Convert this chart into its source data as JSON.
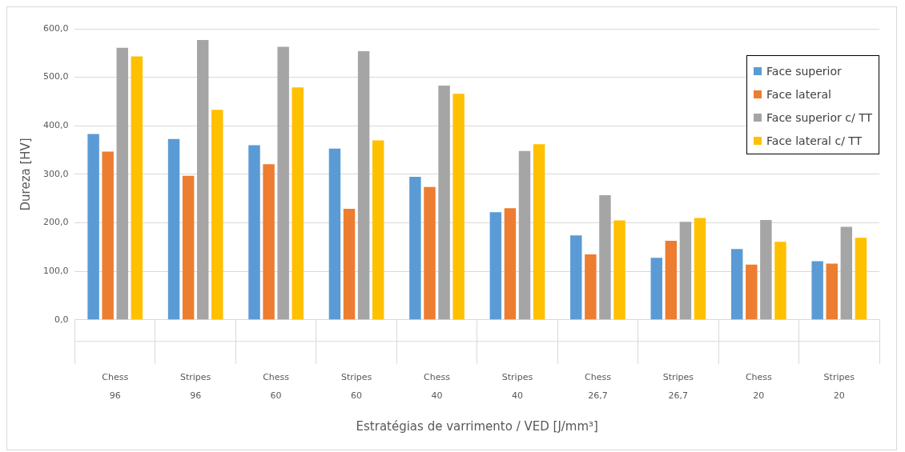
{
  "chart_data": {
    "type": "bar",
    "xlabel": "Estratégias de varrimento / VED [J/mm³]",
    "ylabel": "Dureza [HV]",
    "categories": [
      "Chess\n96",
      "Stripes\n96",
      "Chess\n60",
      "Stripes\n60",
      "Chess\n40",
      "Stripes\n40",
      "Chess\n26,7",
      "Stripes\n26,7",
      "Chess\n20",
      "Stripes\n20"
    ],
    "series": [
      {
        "name": "Face superior",
        "color": "#5b9bd5",
        "values": [
          383,
          373,
          360,
          353,
          295,
          222,
          174,
          128,
          146,
          121
        ]
      },
      {
        "name": "Face lateral",
        "color": "#ed7d31",
        "values": [
          347,
          297,
          321,
          229,
          274,
          230,
          135,
          163,
          114,
          116
        ]
      },
      {
        "name": "Face superior c/ TT",
        "color": "#a5a5a5",
        "values": [
          561,
          577,
          563,
          554,
          483,
          348,
          257,
          202,
          206,
          192
        ]
      },
      {
        "name": "Face lateral c/ TT",
        "color": "#ffc000",
        "values": [
          543,
          433,
          479,
          370,
          466,
          362,
          205,
          210,
          161,
          169
        ]
      }
    ],
    "ylim": [
      0,
      600
    ],
    "yticks": [
      {
        "value": 0,
        "label": "0,0"
      },
      {
        "value": 100,
        "label": "100,0"
      },
      {
        "value": 200,
        "label": "200,0"
      },
      {
        "value": 300,
        "label": "300,0"
      },
      {
        "value": 400,
        "label": "400,0"
      },
      {
        "value": 500,
        "label": "500,0"
      },
      {
        "value": 600,
        "label": "600,0"
      }
    ],
    "grid": "y",
    "legend": "top right"
  }
}
